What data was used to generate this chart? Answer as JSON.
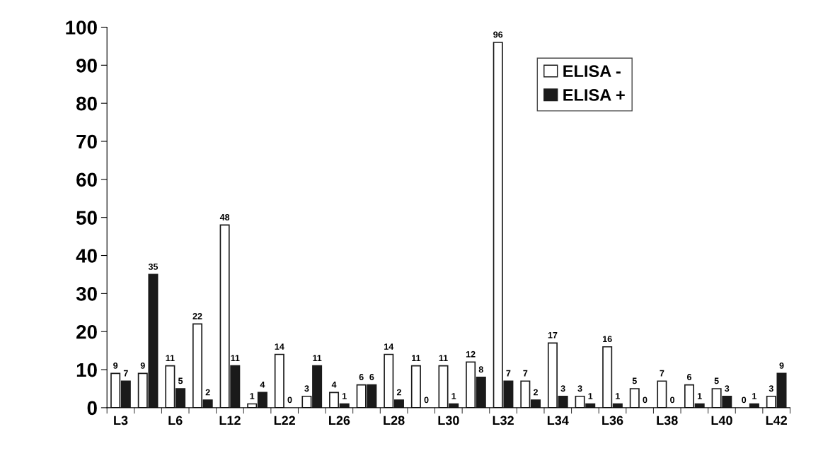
{
  "chart_data": {
    "type": "bar",
    "categories": [
      "L3",
      null,
      "L6",
      null,
      "L12",
      null,
      "L22",
      null,
      "L26",
      null,
      "L28",
      null,
      "L30",
      null,
      "L32",
      null,
      "L34",
      null,
      "L36",
      null,
      "L38",
      null,
      "L40",
      null,
      "L42"
    ],
    "series": [
      {
        "name": "ELISA -",
        "color": "#ffffff",
        "values": [
          9,
          9,
          11,
          22,
          48,
          1,
          14,
          3,
          4,
          6,
          14,
          11,
          11,
          12,
          96,
          7,
          17,
          3,
          16,
          5,
          7,
          6,
          5,
          0,
          3
        ]
      },
      {
        "name": "ELISA +",
        "color": "#1a1a1a",
        "values": [
          7,
          35,
          5,
          2,
          11,
          4,
          0,
          11,
          1,
          6,
          2,
          0,
          1,
          8,
          7,
          2,
          3,
          1,
          1,
          0,
          0,
          1,
          3,
          1,
          9
        ]
      }
    ],
    "ylim": [
      0,
      100
    ],
    "yticks": [
      0,
      10,
      20,
      30,
      40,
      50,
      60,
      70,
      80,
      90,
      100
    ],
    "data_labels": true,
    "legend": "top right",
    "grid": false
  }
}
